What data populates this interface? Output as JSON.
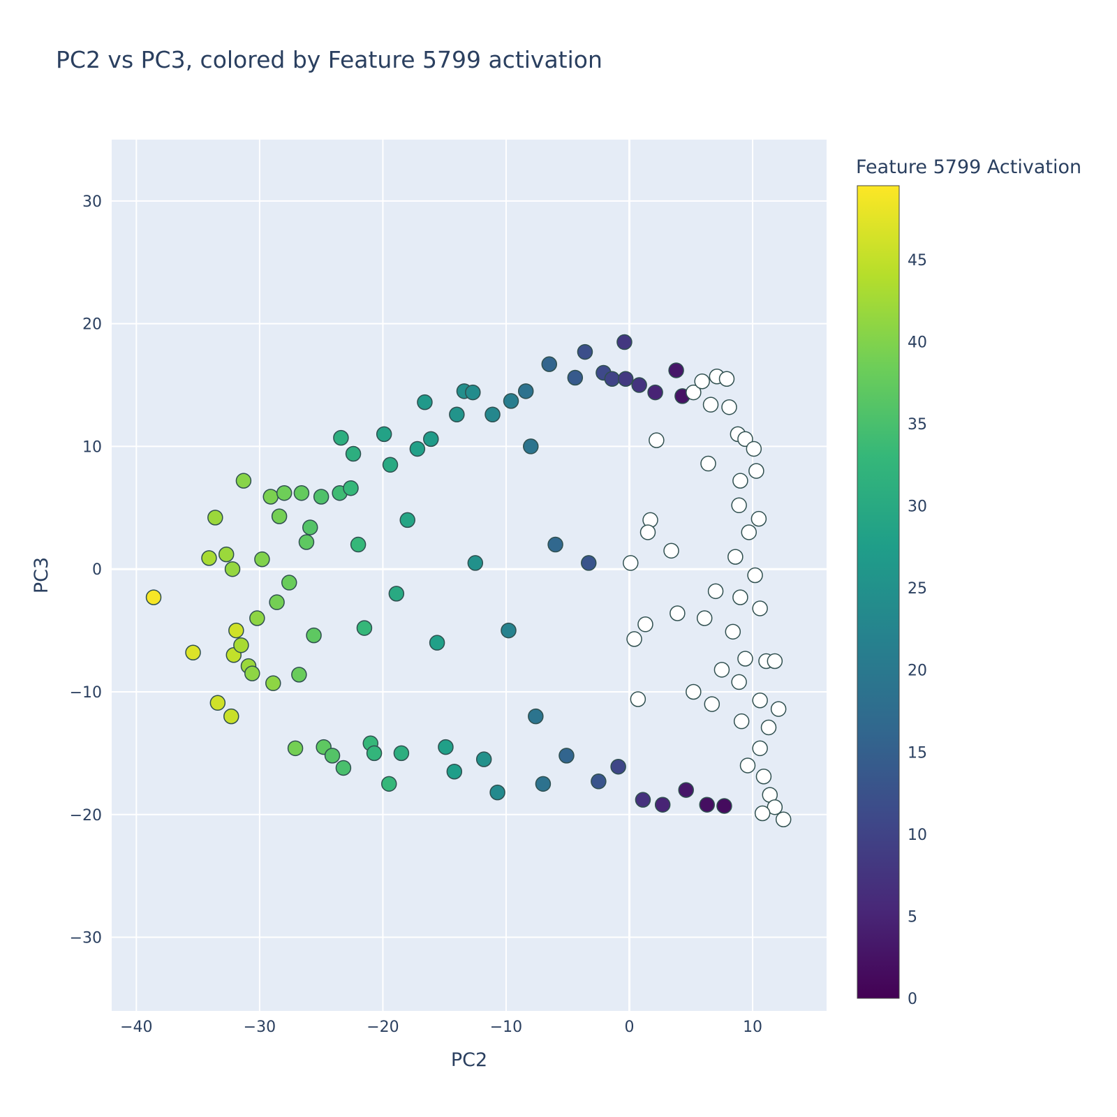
{
  "chart_data": {
    "type": "scatter",
    "title": "PC2 vs PC3, colored by Feature 5799 activation",
    "xlabel": "PC2",
    "ylabel": "PC3",
    "xlim": [
      -42,
      16
    ],
    "ylim": [
      -36,
      35
    ],
    "x_ticks": [
      -40,
      -30,
      -20,
      -10,
      0,
      10
    ],
    "y_ticks": [
      -30,
      -20,
      -10,
      0,
      10,
      20,
      30
    ],
    "x_tick_labels": [
      "−40",
      "−30",
      "−20",
      "−10",
      "0",
      "10"
    ],
    "y_tick_labels": [
      "−30",
      "−20",
      "−10",
      "0",
      "10",
      "20",
      "30"
    ],
    "grid": true,
    "colorscale": "viridis",
    "zero_activation_color": "#ffffff",
    "colorbar": {
      "title": "Feature 5799 Activation",
      "range": [
        0,
        49.5
      ],
      "ticks": [
        0,
        5,
        10,
        15,
        20,
        25,
        30,
        35,
        40,
        45
      ]
    },
    "marker_outline_color": "#2f4f4f",
    "points": [
      {
        "x": -38.6,
        "y": -2.3,
        "c": 49.0
      },
      {
        "x": -35.4,
        "y": -6.8,
        "c": 47.0
      },
      {
        "x": -33.4,
        "y": -10.9,
        "c": 46.0
      },
      {
        "x": -32.3,
        "y": -12.0,
        "c": 45.5
      },
      {
        "x": -32.1,
        "y": -7.0,
        "c": 45.0
      },
      {
        "x": -31.9,
        "y": -5.0,
        "c": 46.0
      },
      {
        "x": -34.1,
        "y": 0.9,
        "c": 43.0
      },
      {
        "x": -33.6,
        "y": 4.2,
        "c": 42.0
      },
      {
        "x": -32.7,
        "y": 1.2,
        "c": 42.0
      },
      {
        "x": -32.2,
        "y": 0.0,
        "c": 41.5
      },
      {
        "x": -31.3,
        "y": 7.2,
        "c": 40.5
      },
      {
        "x": -31.5,
        "y": -6.2,
        "c": 43.0
      },
      {
        "x": -30.9,
        "y": -7.9,
        "c": 42.0
      },
      {
        "x": -30.6,
        "y": -8.5,
        "c": 41.0
      },
      {
        "x": -30.2,
        "y": -4.0,
        "c": 41.0
      },
      {
        "x": -29.8,
        "y": 0.8,
        "c": 40.0
      },
      {
        "x": -29.1,
        "y": 5.9,
        "c": 39.5
      },
      {
        "x": -28.9,
        "y": -9.3,
        "c": 41.0
      },
      {
        "x": -28.4,
        "y": 4.3,
        "c": 39.0
      },
      {
        "x": -28.0,
        "y": 6.2,
        "c": 38.5
      },
      {
        "x": -28.6,
        "y": -2.7,
        "c": 39.0
      },
      {
        "x": -27.6,
        "y": -1.1,
        "c": 38.0
      },
      {
        "x": -27.1,
        "y": -14.6,
        "c": 39.0
      },
      {
        "x": -26.6,
        "y": 6.2,
        "c": 37.5
      },
      {
        "x": -26.2,
        "y": 2.2,
        "c": 37.0
      },
      {
        "x": -25.9,
        "y": 3.4,
        "c": 36.0
      },
      {
        "x": -26.8,
        "y": -8.6,
        "c": 38.0
      },
      {
        "x": -25.6,
        "y": -5.4,
        "c": 37.0
      },
      {
        "x": -25.0,
        "y": 5.9,
        "c": 35.5
      },
      {
        "x": -24.8,
        "y": -14.5,
        "c": 37.0
      },
      {
        "x": -24.1,
        "y": -15.2,
        "c": 36.0
      },
      {
        "x": -23.5,
        "y": 6.2,
        "c": 34.0
      },
      {
        "x": -23.2,
        "y": -16.2,
        "c": 35.0
      },
      {
        "x": -23.4,
        "y": 10.7,
        "c": 31.0
      },
      {
        "x": -22.6,
        "y": 6.6,
        "c": 33.0
      },
      {
        "x": -22.4,
        "y": 9.4,
        "c": 31.0
      },
      {
        "x": -22.0,
        "y": 2.0,
        "c": 33.0
      },
      {
        "x": -21.5,
        "y": -4.8,
        "c": 33.0
      },
      {
        "x": -21.0,
        "y": -14.2,
        "c": 33.0
      },
      {
        "x": -20.7,
        "y": -15.0,
        "c": 32.5
      },
      {
        "x": -19.9,
        "y": 11.0,
        "c": 28.5
      },
      {
        "x": -19.5,
        "y": -17.5,
        "c": 33.0
      },
      {
        "x": -19.4,
        "y": 8.5,
        "c": 30.0
      },
      {
        "x": -18.9,
        "y": -2.0,
        "c": 30.0
      },
      {
        "x": -18.5,
        "y": -15.0,
        "c": 31.0
      },
      {
        "x": -18.0,
        "y": 4.0,
        "c": 29.0
      },
      {
        "x": -17.2,
        "y": 9.8,
        "c": 28.0
      },
      {
        "x": -16.6,
        "y": 13.6,
        "c": 26.5
      },
      {
        "x": -16.1,
        "y": 10.6,
        "c": 27.0
      },
      {
        "x": -15.6,
        "y": -6.0,
        "c": 28.0
      },
      {
        "x": -14.9,
        "y": -14.5,
        "c": 28.0
      },
      {
        "x": -14.2,
        "y": -16.5,
        "c": 27.5
      },
      {
        "x": -14.0,
        "y": 12.6,
        "c": 25.5
      },
      {
        "x": -13.4,
        "y": 14.5,
        "c": 24.5
      },
      {
        "x": -12.7,
        "y": 14.4,
        "c": 24.0
      },
      {
        "x": -12.5,
        "y": 0.5,
        "c": 25.0
      },
      {
        "x": -11.8,
        "y": -15.5,
        "c": 25.0
      },
      {
        "x": -11.1,
        "y": 12.6,
        "c": 23.0
      },
      {
        "x": -10.7,
        "y": -18.2,
        "c": 23.5
      },
      {
        "x": -9.6,
        "y": 13.7,
        "c": 21.0
      },
      {
        "x": -9.8,
        "y": -5.0,
        "c": 22.0
      },
      {
        "x": -8.4,
        "y": 14.5,
        "c": 18.5
      },
      {
        "x": -8.0,
        "y": 10.0,
        "c": 19.0
      },
      {
        "x": -7.6,
        "y": -12.0,
        "c": 19.0
      },
      {
        "x": -7.0,
        "y": -17.5,
        "c": 18.5
      },
      {
        "x": -6.5,
        "y": 16.7,
        "c": 16.0
      },
      {
        "x": -6.0,
        "y": 2.0,
        "c": 16.5
      },
      {
        "x": -5.1,
        "y": -15.2,
        "c": 16.0
      },
      {
        "x": -4.4,
        "y": 15.6,
        "c": 14.0
      },
      {
        "x": -3.6,
        "y": 17.7,
        "c": 12.0
      },
      {
        "x": -3.3,
        "y": 0.5,
        "c": 13.0
      },
      {
        "x": -2.5,
        "y": -17.3,
        "c": 13.0
      },
      {
        "x": -2.1,
        "y": 16.0,
        "c": 11.0
      },
      {
        "x": -1.4,
        "y": 15.5,
        "c": 10.0
      },
      {
        "x": -0.9,
        "y": -16.1,
        "c": 10.5
      },
      {
        "x": -0.4,
        "y": 18.5,
        "c": 8.0
      },
      {
        "x": -0.3,
        "y": 15.5,
        "c": 8.5
      },
      {
        "x": 0.8,
        "y": 15.0,
        "c": 7.5
      },
      {
        "x": 1.1,
        "y": -18.8,
        "c": 7.0
      },
      {
        "x": 2.1,
        "y": 14.4,
        "c": 5.0
      },
      {
        "x": 2.7,
        "y": -19.2,
        "c": 5.0
      },
      {
        "x": 3.8,
        "y": 16.2,
        "c": 3.0
      },
      {
        "x": 4.3,
        "y": 14.1,
        "c": 2.5
      },
      {
        "x": 4.6,
        "y": -18.0,
        "c": 3.0
      },
      {
        "x": 6.3,
        "y": -19.2,
        "c": 2.0
      },
      {
        "x": 7.7,
        "y": -19.3,
        "c": 1.5
      },
      {
        "x": 2.2,
        "y": 10.5,
        "c": 0
      },
      {
        "x": 1.7,
        "y": 4.0,
        "c": 0
      },
      {
        "x": 1.5,
        "y": 3.0,
        "c": 0
      },
      {
        "x": 0.1,
        "y": 0.5,
        "c": 0
      },
      {
        "x": 0.4,
        "y": -5.7,
        "c": 0
      },
      {
        "x": 1.3,
        "y": -4.5,
        "c": 0
      },
      {
        "x": 0.7,
        "y": -10.6,
        "c": 0
      },
      {
        "x": 3.4,
        "y": 1.5,
        "c": 0
      },
      {
        "x": 3.9,
        "y": -3.6,
        "c": 0
      },
      {
        "x": 5.2,
        "y": 14.4,
        "c": 0
      },
      {
        "x": 5.9,
        "y": 15.3,
        "c": 0
      },
      {
        "x": 6.6,
        "y": 13.4,
        "c": 0
      },
      {
        "x": 7.1,
        "y": 15.7,
        "c": 0
      },
      {
        "x": 7.9,
        "y": 15.5,
        "c": 0
      },
      {
        "x": 8.1,
        "y": 13.2,
        "c": 0
      },
      {
        "x": 8.8,
        "y": 11.0,
        "c": 0
      },
      {
        "x": 9.4,
        "y": 10.6,
        "c": 0
      },
      {
        "x": 10.1,
        "y": 9.8,
        "c": 0
      },
      {
        "x": 9.0,
        "y": 7.2,
        "c": 0
      },
      {
        "x": 10.3,
        "y": 8.0,
        "c": 0
      },
      {
        "x": 8.9,
        "y": 5.2,
        "c": 0
      },
      {
        "x": 10.5,
        "y": 4.1,
        "c": 0
      },
      {
        "x": 9.7,
        "y": 3.0,
        "c": 0
      },
      {
        "x": 8.6,
        "y": 1.0,
        "c": 0
      },
      {
        "x": 10.2,
        "y": -0.5,
        "c": 0
      },
      {
        "x": 9.0,
        "y": -2.3,
        "c": 0
      },
      {
        "x": 10.6,
        "y": -3.2,
        "c": 0
      },
      {
        "x": 8.4,
        "y": -5.1,
        "c": 0
      },
      {
        "x": 9.4,
        "y": -7.3,
        "c": 0
      },
      {
        "x": 11.1,
        "y": -7.5,
        "c": 0
      },
      {
        "x": 11.8,
        "y": -7.5,
        "c": 0
      },
      {
        "x": 8.9,
        "y": -9.2,
        "c": 0
      },
      {
        "x": 10.6,
        "y": -10.7,
        "c": 0
      },
      {
        "x": 9.1,
        "y": -12.4,
        "c": 0
      },
      {
        "x": 11.3,
        "y": -12.9,
        "c": 0
      },
      {
        "x": 12.1,
        "y": -11.4,
        "c": 0
      },
      {
        "x": 10.6,
        "y": -14.6,
        "c": 0
      },
      {
        "x": 9.6,
        "y": -16.0,
        "c": 0
      },
      {
        "x": 10.9,
        "y": -16.9,
        "c": 0
      },
      {
        "x": 11.4,
        "y": -18.4,
        "c": 0
      },
      {
        "x": 11.8,
        "y": -19.4,
        "c": 0
      },
      {
        "x": 10.8,
        "y": -19.9,
        "c": 0
      },
      {
        "x": 12.5,
        "y": -20.4,
        "c": 0
      },
      {
        "x": 6.7,
        "y": -11.0,
        "c": 0
      },
      {
        "x": 7.5,
        "y": -8.2,
        "c": 0
      },
      {
        "x": 5.2,
        "y": -10.0,
        "c": 0
      },
      {
        "x": 6.1,
        "y": -4.0,
        "c": 0
      },
      {
        "x": 7.0,
        "y": -1.8,
        "c": 0
      },
      {
        "x": 6.4,
        "y": 8.6,
        "c": 0
      }
    ]
  }
}
